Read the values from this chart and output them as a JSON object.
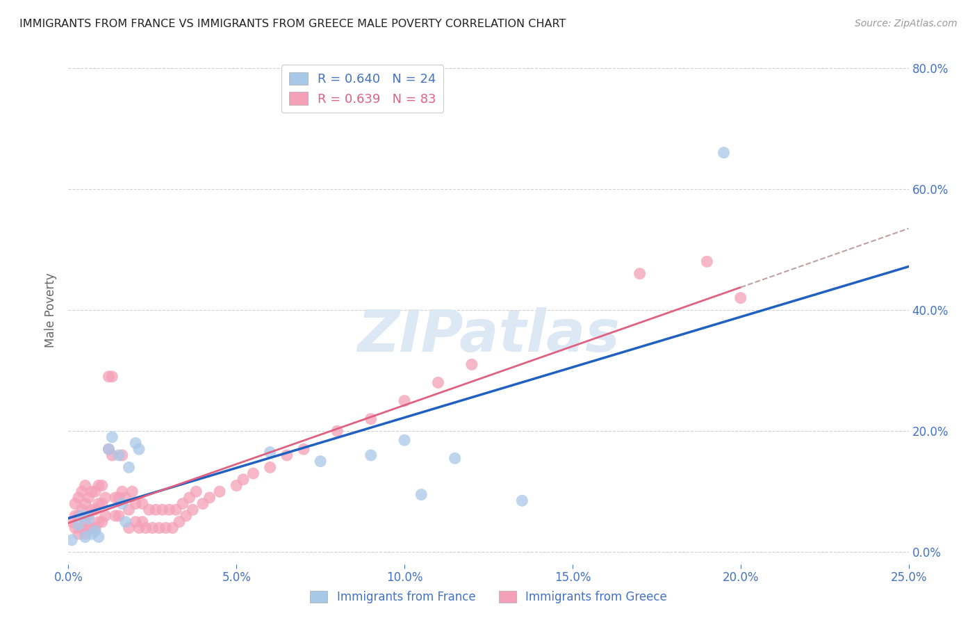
{
  "title": "IMMIGRANTS FROM FRANCE VS IMMIGRANTS FROM GREECE MALE POVERTY CORRELATION CHART",
  "source": "Source: ZipAtlas.com",
  "ylabel": "Male Poverty",
  "legend_france": "Immigrants from France",
  "legend_greece": "Immigrants from Greece",
  "france_R": "0.640",
  "france_N": "24",
  "greece_R": "0.639",
  "greece_N": "83",
  "xlim": [
    0.0,
    0.25
  ],
  "ylim": [
    -0.02,
    0.82
  ],
  "xticks": [
    0.0,
    0.05,
    0.1,
    0.15,
    0.2,
    0.25
  ],
  "yticks": [
    0.0,
    0.2,
    0.4,
    0.6,
    0.8
  ],
  "france_color": "#a8c8e8",
  "greece_color": "#f4a0b8",
  "france_line_color": "#2060c0",
  "greece_line_color": "#e06080",
  "watermark": "ZIPatlas",
  "watermark_color": "#dce8f4",
  "france_x": [
    0.001,
    0.003,
    0.004,
    0.005,
    0.006,
    0.007,
    0.008,
    0.009,
    0.012,
    0.013,
    0.015,
    0.016,
    0.017,
    0.018,
    0.02,
    0.021,
    0.06,
    0.075,
    0.09,
    0.1,
    0.105,
    0.115,
    0.135,
    0.195
  ],
  "france_y": [
    0.02,
    0.045,
    0.06,
    0.025,
    0.055,
    0.03,
    0.035,
    0.025,
    0.17,
    0.19,
    0.16,
    0.08,
    0.05,
    0.14,
    0.18,
    0.17,
    0.165,
    0.15,
    0.16,
    0.185,
    0.095,
    0.155,
    0.085,
    0.66
  ],
  "greece_x": [
    0.001,
    0.002,
    0.002,
    0.002,
    0.003,
    0.003,
    0.003,
    0.004,
    0.004,
    0.004,
    0.005,
    0.005,
    0.005,
    0.005,
    0.006,
    0.006,
    0.006,
    0.007,
    0.007,
    0.007,
    0.008,
    0.008,
    0.008,
    0.009,
    0.009,
    0.009,
    0.01,
    0.01,
    0.01,
    0.011,
    0.011,
    0.012,
    0.012,
    0.013,
    0.013,
    0.014,
    0.014,
    0.015,
    0.015,
    0.016,
    0.016,
    0.017,
    0.018,
    0.018,
    0.019,
    0.02,
    0.02,
    0.021,
    0.022,
    0.022,
    0.023,
    0.024,
    0.025,
    0.026,
    0.027,
    0.028,
    0.029,
    0.03,
    0.031,
    0.032,
    0.033,
    0.034,
    0.035,
    0.036,
    0.037,
    0.038,
    0.04,
    0.042,
    0.045,
    0.05,
    0.052,
    0.055,
    0.06,
    0.065,
    0.07,
    0.08,
    0.09,
    0.1,
    0.11,
    0.12,
    0.17,
    0.19,
    0.2
  ],
  "greece_y": [
    0.05,
    0.04,
    0.06,
    0.08,
    0.03,
    0.06,
    0.09,
    0.04,
    0.07,
    0.1,
    0.03,
    0.05,
    0.08,
    0.11,
    0.04,
    0.06,
    0.09,
    0.04,
    0.07,
    0.1,
    0.04,
    0.07,
    0.1,
    0.05,
    0.08,
    0.11,
    0.05,
    0.08,
    0.11,
    0.06,
    0.09,
    0.17,
    0.29,
    0.16,
    0.29,
    0.06,
    0.09,
    0.06,
    0.09,
    0.16,
    0.1,
    0.09,
    0.04,
    0.07,
    0.1,
    0.05,
    0.08,
    0.04,
    0.05,
    0.08,
    0.04,
    0.07,
    0.04,
    0.07,
    0.04,
    0.07,
    0.04,
    0.07,
    0.04,
    0.07,
    0.05,
    0.08,
    0.06,
    0.09,
    0.07,
    0.1,
    0.08,
    0.09,
    0.1,
    0.11,
    0.12,
    0.13,
    0.14,
    0.16,
    0.17,
    0.2,
    0.22,
    0.25,
    0.28,
    0.31,
    0.46,
    0.48,
    0.42
  ],
  "title_color": "#222222",
  "axis_color": "#4472c4",
  "grid_color": "#d0d0d0",
  "background_color": "#ffffff"
}
